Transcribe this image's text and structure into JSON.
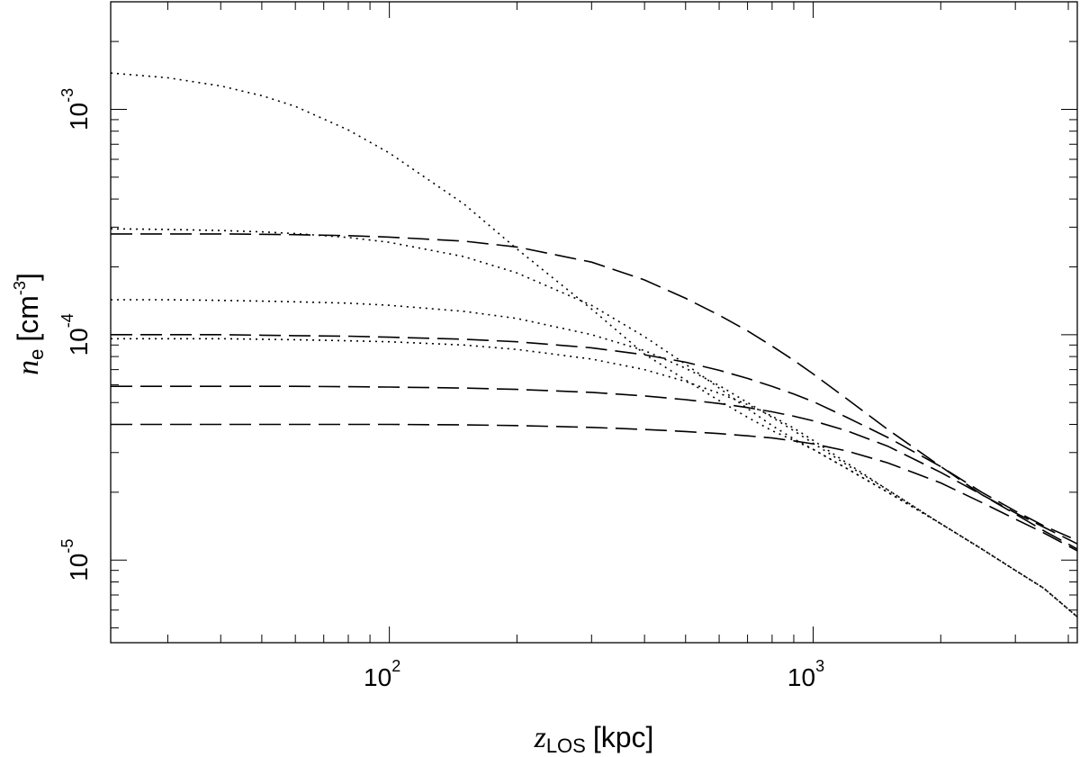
{
  "chart_data": {
    "type": "line",
    "title": "",
    "x_scale": "log",
    "y_scale": "log",
    "xlim": [
      22,
      4200
    ],
    "ylim": [
      4.3e-06,
      0.003
    ],
    "xlabel": {
      "symbol": "z",
      "subscript": "LOS",
      "unit": "[kpc]"
    },
    "ylabel": {
      "symbol": "n",
      "subscript": "e",
      "unit_prefix": "[cm",
      "unit_exponent": "-3",
      "unit_suffix": "]"
    },
    "x_ticks": [
      {
        "base": "10",
        "exponent": "2",
        "value": 100
      },
      {
        "base": "10",
        "exponent": "3",
        "value": 1000
      }
    ],
    "y_ticks": [
      {
        "base": "10",
        "exponent": "-5",
        "value": 1e-05
      },
      {
        "base": "10",
        "exponent": "-4",
        "value": 0.0001
      },
      {
        "base": "10",
        "exponent": "-3",
        "value": 0.001
      }
    ],
    "x": [
      22,
      30,
      40,
      50,
      60,
      80,
      100,
      150,
      200,
      300,
      400,
      500,
      600,
      700,
      800,
      900,
      1000,
      1200,
      1500,
      2000,
      2500,
      3000,
      3500,
      4200
    ],
    "series": [
      {
        "style": "dotted",
        "values": [
          0.00145,
          0.00138,
          0.00127,
          0.00115,
          0.00103,
          0.00081,
          0.00064,
          0.00038,
          0.00024,
          0.00013,
          8.2e-05,
          6.3e-05,
          5.1e-05,
          4.3e-05,
          3.75e-05,
          3.4e-05,
          3.1e-05,
          2.55e-05,
          2e-05,
          1.45e-05,
          1.12e-05,
          9e-06,
          7.5e-06,
          5.6e-06
        ]
      },
      {
        "style": "dotted",
        "values": [
          0.000295,
          0.000293,
          0.00029,
          0.000286,
          0.000281,
          0.00027,
          0.000257,
          0.000222,
          0.000188,
          0.000135,
          9.8e-05,
          7.4e-05,
          5.8e-05,
          4.7e-05,
          3.95e-05,
          3.45e-05,
          3.1e-05,
          2.55e-05,
          2e-05,
          1.45e-05,
          1.12e-05,
          9e-06,
          7.5e-06,
          5.6e-06
        ]
      },
      {
        "style": "dotted",
        "values": [
          0.000143,
          0.000143,
          0.000142,
          0.000141,
          0.00014,
          0.000138,
          0.000135,
          0.000127,
          0.000118,
          0.0001,
          8.5e-05,
          7.1e-05,
          5.95e-05,
          5e-05,
          4.3e-05,
          3.75e-05,
          3.3e-05,
          2.65e-05,
          2.05e-05,
          1.45e-05,
          1.12e-05,
          9e-06,
          7.5e-06,
          5.6e-06
        ]
      },
      {
        "style": "dotted",
        "values": [
          9.6e-05,
          9.6e-05,
          9.6e-05,
          9.55e-05,
          9.5e-05,
          9.4e-05,
          9.3e-05,
          9e-05,
          8.6e-05,
          7.8e-05,
          7e-05,
          6.2e-05,
          5.5e-05,
          4.9e-05,
          4.35e-05,
          3.85e-05,
          3.4e-05,
          2.7e-05,
          2.05e-05,
          1.45e-05,
          1.12e-05,
          9e-06,
          7.5e-06,
          5.6e-06
        ]
      },
      {
        "style": "dashed",
        "values": [
          0.00028,
          0.00028,
          0.00028,
          0.000279,
          0.000278,
          0.000275,
          0.000271,
          0.00026,
          0.000245,
          0.00021,
          0.000175,
          0.000145,
          0.000122,
          0.000104,
          8.9e-05,
          7.7e-05,
          6.7e-05,
          5.2e-05,
          3.8e-05,
          2.6e-05,
          1.95e-05,
          1.6e-05,
          1.35e-05,
          1.12e-05
        ]
      },
      {
        "style": "dashed",
        "values": [
          0.0001,
          0.0001,
          0.0001,
          9.95e-05,
          9.9e-05,
          9.85e-05,
          9.75e-05,
          9.55e-05,
          9.3e-05,
          8.75e-05,
          8.15e-05,
          7.55e-05,
          6.95e-05,
          6.4e-05,
          5.9e-05,
          5.45e-05,
          5.05e-05,
          4.3e-05,
          3.5e-05,
          2.6e-05,
          2e-05,
          1.65e-05,
          1.42e-05,
          1.22e-05
        ]
      },
      {
        "style": "dashed",
        "values": [
          5.9e-05,
          5.9e-05,
          5.9e-05,
          5.9e-05,
          5.9e-05,
          5.88e-05,
          5.86e-05,
          5.8e-05,
          5.72e-05,
          5.55e-05,
          5.35e-05,
          5.15e-05,
          4.95e-05,
          4.75e-05,
          4.55e-05,
          4.35e-05,
          4.15e-05,
          3.75e-05,
          3.2e-05,
          2.45e-05,
          1.95e-05,
          1.62e-05,
          1.4e-05,
          1.18e-05
        ]
      },
      {
        "style": "dashed",
        "values": [
          4e-05,
          4e-05,
          4e-05,
          4e-05,
          4e-05,
          4e-05,
          4e-05,
          3.98e-05,
          3.95e-05,
          3.88e-05,
          3.8e-05,
          3.72e-05,
          3.64e-05,
          3.56e-05,
          3.48e-05,
          3.38e-05,
          3.28e-05,
          3.05e-05,
          2.7e-05,
          2.2e-05,
          1.8e-05,
          1.52e-05,
          1.32e-05,
          1.1e-05
        ]
      }
    ]
  }
}
